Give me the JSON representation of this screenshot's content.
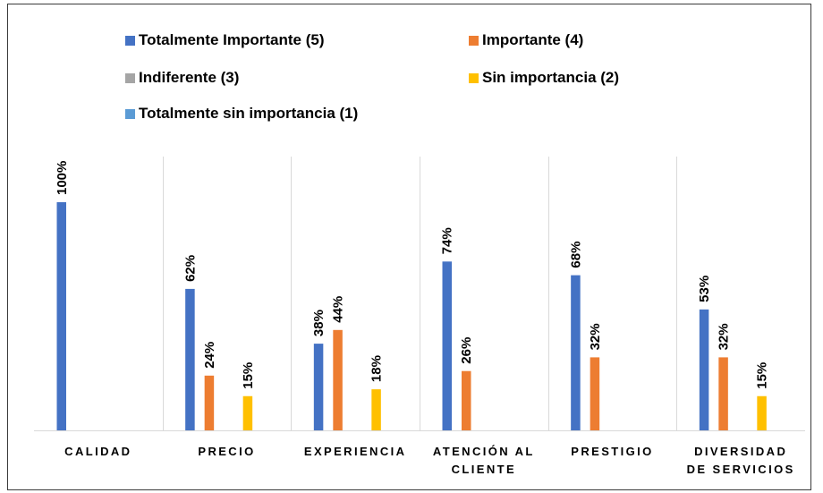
{
  "chart_data": {
    "type": "bar",
    "title": "",
    "xlabel": "",
    "ylabel": "",
    "ylim": [
      0,
      100
    ],
    "grid": "vertical separators between categories",
    "legend_position": "top",
    "categories": [
      [
        "CALIDAD"
      ],
      [
        "PRECIO"
      ],
      [
        "EXPERIENCIA"
      ],
      [
        "ATENCIÓN AL",
        "CLIENTE"
      ],
      [
        "PRESTIGIO"
      ],
      [
        "DIVERSIDAD",
        "DE SERVICIOS"
      ]
    ],
    "series": [
      {
        "name": "Totalmente Importante (5)",
        "color": "#4472C4",
        "values": [
          100,
          62,
          38,
          74,
          68,
          53
        ],
        "labels": [
          "100%",
          "62%",
          "38%",
          "74%",
          "68%",
          "53%"
        ]
      },
      {
        "name": "Importante (4)",
        "color": "#ED7D31",
        "values": [
          null,
          24,
          44,
          26,
          32,
          32
        ],
        "labels": [
          "",
          "24%",
          "44%",
          "26%",
          "32%",
          "32%"
        ]
      },
      {
        "name": "Indiferente (3)",
        "color": "#A5A5A5",
        "values": [
          null,
          null,
          null,
          null,
          null,
          null
        ],
        "labels": [
          "",
          "",
          "",
          "",
          "",
          ""
        ]
      },
      {
        "name": "Sin importancia (2)",
        "color": "#FFC000",
        "values": [
          null,
          15,
          18,
          null,
          null,
          15
        ],
        "labels": [
          "",
          "15%",
          "18%",
          "",
          "",
          "15%"
        ]
      },
      {
        "name": "Totalmente sin importancia (1)",
        "color": "#5B9BD5",
        "values": [
          null,
          null,
          null,
          null,
          null,
          null
        ],
        "labels": [
          "",
          "",
          "",
          "",
          "",
          ""
        ]
      }
    ]
  }
}
